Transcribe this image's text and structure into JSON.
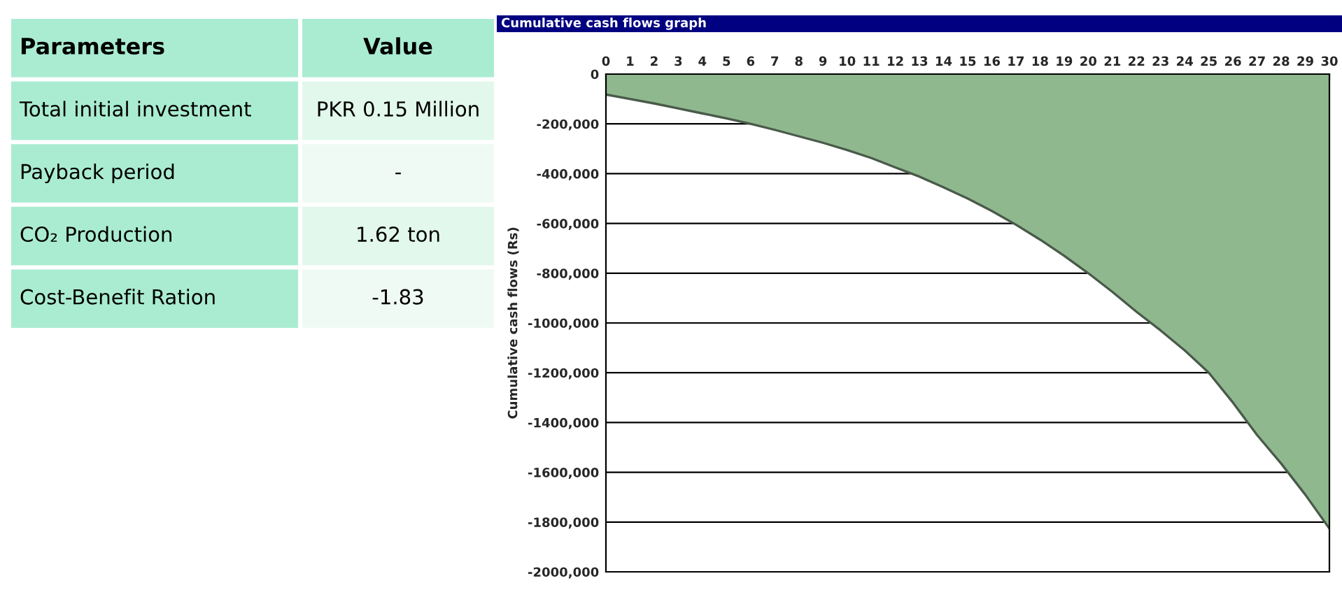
{
  "chart_data": [
    {
      "type": "other",
      "annotations": [
        "Parameters",
        "Value",
        "Total initial investment",
        "PKR 0.15 Million",
        "Payback period",
        "-",
        "CO₂ Production",
        "1.62 ton",
        "Cost-Benefit Ration",
        "-1.83"
      ]
    },
    {
      "type": "area",
      "title": "Cumulative cash flows graph",
      "ylabel": "Cumulative cash flows (Rs)",
      "x": [
        0,
        1,
        2,
        3,
        4,
        5,
        6,
        7,
        8,
        9,
        10,
        11,
        12,
        13,
        14,
        15,
        16,
        17,
        18,
        19,
        20,
        21,
        22,
        23,
        24,
        25,
        26,
        27,
        28,
        29,
        30
      ],
      "series": [
        {
          "color": "#8fb88f",
          "values": [
            -82000,
            -100000,
            -118000,
            -138000,
            -158000,
            -178000,
            -200000,
            -224000,
            -250000,
            -276000,
            -305000,
            -337000,
            -375000,
            -412000,
            -455000,
            -500000,
            -550000,
            -605000,
            -665000,
            -730000,
            -800000,
            -875000,
            -955000,
            -1030000,
            -1110000,
            -1200000,
            -1320000,
            -1450000,
            -1565000,
            -1690000,
            -1826000
          ]
        }
      ],
      "xlim": [
        0,
        30
      ],
      "xticks": [
        0,
        1,
        2,
        3,
        4,
        5,
        6,
        7,
        8,
        9,
        10,
        11,
        12,
        13,
        14,
        15,
        16,
        17,
        18,
        19,
        20,
        21,
        22,
        23,
        24,
        25,
        26,
        27,
        28,
        29,
        30
      ],
      "ylim": [
        -2000000,
        0
      ],
      "yticks": [
        0,
        {
          "value": -200000,
          "label": "-200,000"
        },
        {
          "value": -400000,
          "label": "-400,000"
        },
        {
          "value": -600000,
          "label": "-600,000"
        },
        {
          "value": -800000,
          "label": "-800,000"
        },
        {
          "value": -1000000,
          "label": "-1000,000"
        },
        {
          "value": -1200000,
          "label": "-1200,000"
        },
        {
          "value": -1400000,
          "label": "-1400,000"
        },
        {
          "value": -1600000,
          "label": "-1600,000"
        },
        {
          "value": -1800000,
          "label": "-1800,000"
        },
        {
          "value": -2000000,
          "label": "-2000,000"
        }
      ],
      "grid": "y",
      "legend": false
    }
  ]
}
